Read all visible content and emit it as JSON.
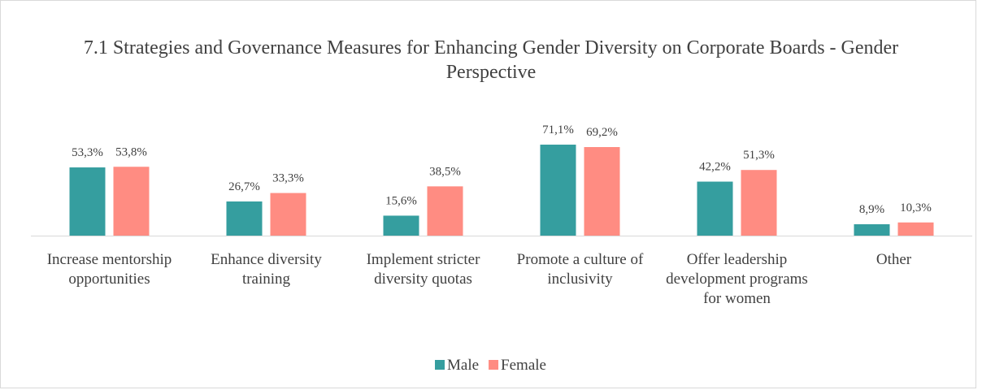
{
  "chart_data": {
    "type": "bar",
    "title": "7.1 Strategies and Governance Measures for Enhancing Gender Diversity on Corporate Boards - Gender Perspective",
    "categories": [
      "Increase mentorship opportunities",
      "Enhance diversity training",
      "Implement stricter diversity quotas",
      "Promote a culture of inclusivity",
      "Offer leadership development programs for women",
      "Other"
    ],
    "series": [
      {
        "name": "Male",
        "color": "#359e9f",
        "values": [
          53.3,
          26.7,
          15.6,
          71.1,
          42.2,
          8.9
        ],
        "value_labels": [
          "53,3%",
          "26,7%",
          "15,6%",
          "71,1%",
          "42,2%",
          "8,9%"
        ]
      },
      {
        "name": "Female",
        "color": "#ff8c82",
        "values": [
          53.8,
          33.3,
          38.5,
          69.2,
          51.3,
          10.3
        ],
        "value_labels": [
          "53,8%",
          "33,3%",
          "38,5%",
          "69,2%",
          "51,3%",
          "10,3%"
        ]
      }
    ],
    "ylim": [
      0,
      80
    ],
    "legend": "bottom"
  }
}
